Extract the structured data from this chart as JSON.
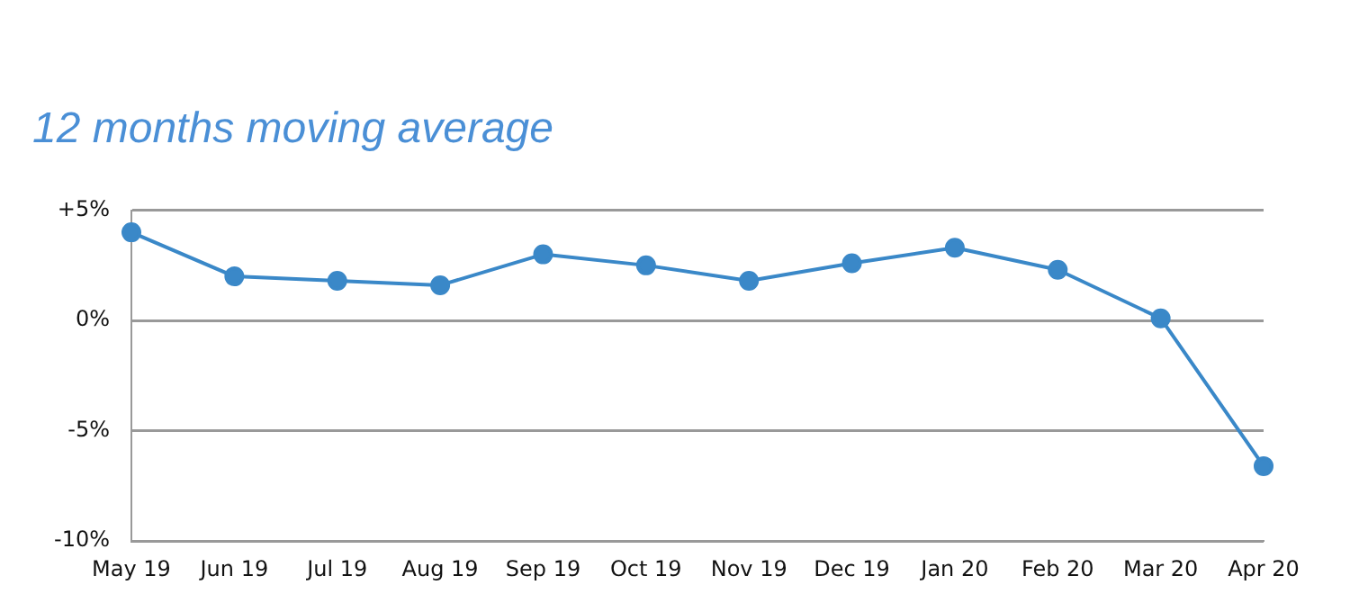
{
  "chart_data": {
    "type": "line",
    "title": "12 months moving average",
    "categories": [
      "May 19",
      "Jun 19",
      "Jul 19",
      "Aug 19",
      "Sep 19",
      "Oct 19",
      "Nov 19",
      "Dec 19",
      "Jan 20",
      "Feb 20",
      "Mar 20",
      "Apr 20"
    ],
    "series": [
      {
        "color": "#3a88c8",
        "values": [
          4.0,
          2.0,
          1.8,
          1.6,
          3.0,
          2.5,
          1.8,
          2.6,
          3.3,
          2.3,
          0.1,
          -6.6
        ]
      }
    ],
    "ylim": [
      -10,
      5
    ],
    "yticks": [
      {
        "value": -10,
        "label": "-10%"
      },
      {
        "value": -5,
        "label": "-5%"
      },
      {
        "value": 0,
        "label": "0%"
      },
      {
        "value": 5,
        "label": "+5%"
      }
    ],
    "grid": "y",
    "marker": "circle",
    "line_style": "solid",
    "legend": false
  }
}
